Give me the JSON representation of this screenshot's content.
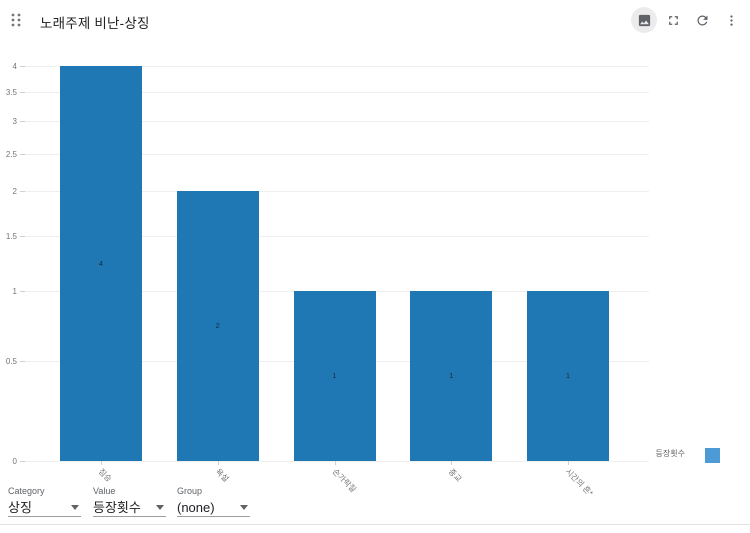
{
  "header": {
    "title": "노래주제 비난-상징"
  },
  "toolbar": {
    "icons": [
      "chart-image-icon",
      "fullscreen-icon",
      "refresh-icon",
      "more-vert-icon"
    ],
    "active_icon": "chart-image-icon",
    "icon_color": "#5f6368",
    "active_bg": "#ececec"
  },
  "chart_data": {
    "type": "bar",
    "title": "노래주제 비난-상징",
    "categories": [
      "짐승",
      "욕설",
      "손가락질",
      "종교",
      "시간의 흔*"
    ],
    "values": [
      4,
      2,
      1,
      1,
      1
    ],
    "bar_value_labels": [
      "4",
      "2",
      "1",
      "1",
      "1"
    ],
    "series_name": "등장횟수",
    "xlabel": "",
    "ylabel": "",
    "ylim": [
      0,
      4
    ],
    "y_ticks": [
      0,
      0.5,
      1,
      1.5,
      2,
      2.5,
      3,
      3.5,
      4
    ],
    "y_scale": "symlog",
    "grid": true,
    "x_tick_rotation": 45,
    "bar_color": "#1f77b4",
    "legend": {
      "label": "등장횟수",
      "position": "right",
      "swatch_color": "#4c9bd6"
    }
  },
  "controls": {
    "category": {
      "label": "Category",
      "value": "상징"
    },
    "value": {
      "label": "Value",
      "value": "등장횟수"
    },
    "group": {
      "label": "Group",
      "value": "(none)"
    }
  }
}
